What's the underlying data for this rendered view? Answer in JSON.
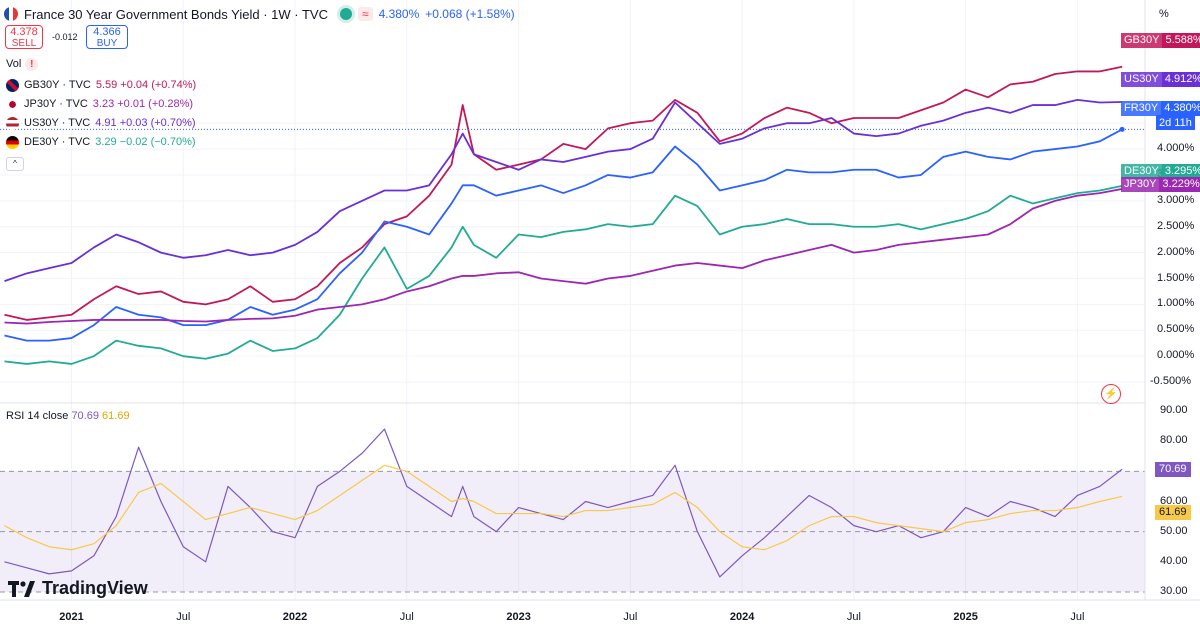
{
  "header": {
    "title": "France 30 Year Government Bonds Yield · 1W · TVC",
    "approx_symbol": "≈",
    "last": "4.380%",
    "change": "+0.068 (+1.58%)",
    "sell_price": "4.378",
    "sell_label": "SELL",
    "spread": "-0.012",
    "buy_price": "4.366",
    "buy_label": "BUY",
    "vol_label": "Vol",
    "vol_warning": "!",
    "collapse": "^"
  },
  "legend": [
    {
      "sym": "GB30Y · TVC",
      "val": "5.59 +0.04 (+0.74%)",
      "color": "#c2185b",
      "flag": "uk-flag-icon"
    },
    {
      "sym": "JP30Y · TVC",
      "val": "3.23 +0.01 (+0.28%)",
      "color": "#9c27b0",
      "flag": "japan-flag-icon"
    },
    {
      "sym": "US30Y · TVC",
      "val": "4.91 +0.03 (+0.70%)",
      "color": "#6b2fd6",
      "flag": "us-flag-icon"
    },
    {
      "sym": "DE30Y · TVC",
      "val": "3.29 −0.02 (−0.70%)",
      "color": "#22ab94",
      "flag": "germany-flag-icon"
    }
  ],
  "price_axis_unit": "%",
  "rsi": {
    "label": "RSI 14 close",
    "value": "70.69",
    "ma_value": "61.69"
  },
  "brand": "TradingView",
  "end_tags": [
    {
      "name": "GB30Y",
      "value": "5.588%",
      "color": "#c2185b"
    },
    {
      "name": "US30Y",
      "value": "4.912%",
      "color": "#6b2fd6"
    },
    {
      "name": "FR30Y",
      "value": "4.380%",
      "extra": "2d 11h",
      "color": "#2962ff"
    },
    {
      "name": "DE30Y",
      "value": "3.295%",
      "color": "#22ab94"
    },
    {
      "name": "JP30Y",
      "value": "3.229%",
      "color": "#9c27b0"
    }
  ],
  "chart_data": [
    {
      "type": "line",
      "title": "France 30 Year Government Bonds Yield · 1W · TVC",
      "y_unit": "%",
      "ylim": [
        -0.75,
        6.3
      ],
      "y_ticks": [
        "4.500%",
        "4.000%",
        "3.500%",
        "3.000%",
        "2.500%",
        "2.000%",
        "1.500%",
        "1.000%",
        "0.500%",
        "0.000%",
        "-0.500%"
      ],
      "y_tick_values": [
        4.5,
        4.0,
        3.5,
        3.0,
        2.5,
        2.0,
        1.5,
        1.0,
        0.5,
        0.0,
        -0.5
      ],
      "x_ticks": [
        "2021",
        "Jul",
        "2022",
        "Jul",
        "2023",
        "Jul",
        "2024",
        "Jul",
        "2025",
        "Jul"
      ],
      "x_tick_values": [
        2021.0,
        2021.5,
        2022.0,
        2022.5,
        2023.0,
        2023.5,
        2024.0,
        2024.5,
        2025.0,
        2025.5
      ],
      "xlim": [
        2020.68,
        2025.78
      ],
      "x": [
        2020.7,
        2020.8,
        2020.9,
        2021.0,
        2021.1,
        2021.2,
        2021.3,
        2021.4,
        2021.5,
        2021.6,
        2021.7,
        2021.8,
        2021.9,
        2022.0,
        2022.1,
        2022.2,
        2022.3,
        2022.4,
        2022.5,
        2022.6,
        2022.7,
        2022.75,
        2022.8,
        2022.9,
        2023.0,
        2023.1,
        2023.2,
        2023.3,
        2023.4,
        2023.5,
        2023.6,
        2023.7,
        2023.8,
        2023.9,
        2024.0,
        2024.1,
        2024.2,
        2024.3,
        2024.4,
        2024.5,
        2024.6,
        2024.7,
        2024.8,
        2024.9,
        2025.0,
        2025.1,
        2025.2,
        2025.3,
        2025.4,
        2025.5,
        2025.6,
        2025.7
      ],
      "series": [
        {
          "name": "GB30Y",
          "color": "#c2185b",
          "values": [
            0.8,
            0.7,
            0.75,
            0.8,
            1.1,
            1.35,
            1.2,
            1.25,
            1.05,
            1.0,
            1.1,
            1.35,
            1.05,
            1.1,
            1.35,
            1.8,
            2.1,
            2.55,
            2.7,
            3.1,
            3.7,
            4.85,
            3.9,
            3.6,
            3.7,
            3.8,
            4.1,
            4.0,
            4.4,
            4.5,
            4.55,
            4.95,
            4.7,
            4.15,
            4.3,
            4.6,
            4.8,
            4.7,
            4.5,
            4.6,
            4.6,
            4.6,
            4.75,
            4.9,
            5.15,
            5.0,
            5.25,
            5.3,
            5.45,
            5.5,
            5.5,
            5.59
          ]
        },
        {
          "name": "US30Y",
          "color": "#6b2fd6",
          "values": [
            1.45,
            1.6,
            1.7,
            1.8,
            2.1,
            2.35,
            2.2,
            2.0,
            1.9,
            1.95,
            2.05,
            1.95,
            2.0,
            2.15,
            2.4,
            2.8,
            3.0,
            3.2,
            3.2,
            3.3,
            3.9,
            4.3,
            3.9,
            3.75,
            3.6,
            3.8,
            3.75,
            3.85,
            3.95,
            4.0,
            4.2,
            4.9,
            4.5,
            4.1,
            4.2,
            4.4,
            4.5,
            4.5,
            4.6,
            4.3,
            4.25,
            4.3,
            4.45,
            4.55,
            4.7,
            4.8,
            4.7,
            4.85,
            4.85,
            4.95,
            4.9,
            4.91
          ]
        },
        {
          "name": "FR30Y",
          "color": "#2962ff",
          "values": [
            0.4,
            0.3,
            0.3,
            0.35,
            0.6,
            0.95,
            0.8,
            0.75,
            0.6,
            0.6,
            0.7,
            0.95,
            0.8,
            0.9,
            1.1,
            1.6,
            2.0,
            2.6,
            2.5,
            2.35,
            2.95,
            3.3,
            3.3,
            3.1,
            3.2,
            3.3,
            3.15,
            3.3,
            3.5,
            3.45,
            3.55,
            4.05,
            3.7,
            3.2,
            3.3,
            3.4,
            3.6,
            3.55,
            3.55,
            3.6,
            3.6,
            3.45,
            3.5,
            3.85,
            3.95,
            3.85,
            3.8,
            3.95,
            4.0,
            4.05,
            4.15,
            4.38
          ]
        },
        {
          "name": "DE30Y",
          "color": "#22ab94",
          "values": [
            -0.1,
            -0.15,
            -0.1,
            -0.15,
            0.0,
            0.3,
            0.2,
            0.15,
            0.0,
            -0.05,
            0.05,
            0.3,
            0.1,
            0.15,
            0.35,
            0.8,
            1.5,
            2.1,
            1.3,
            1.55,
            2.1,
            2.5,
            2.15,
            1.9,
            2.35,
            2.3,
            2.4,
            2.45,
            2.55,
            2.5,
            2.55,
            3.1,
            2.9,
            2.35,
            2.5,
            2.55,
            2.65,
            2.55,
            2.55,
            2.5,
            2.5,
            2.55,
            2.45,
            2.55,
            2.65,
            2.8,
            3.1,
            2.95,
            3.05,
            3.15,
            3.2,
            3.29
          ]
        },
        {
          "name": "JP30Y",
          "color": "#9c27b0",
          "values": [
            0.65,
            0.63,
            0.66,
            0.68,
            0.7,
            0.7,
            0.7,
            0.7,
            0.68,
            0.67,
            0.7,
            0.72,
            0.73,
            0.78,
            0.9,
            0.95,
            1.0,
            1.1,
            1.25,
            1.35,
            1.5,
            1.55,
            1.55,
            1.6,
            1.62,
            1.5,
            1.45,
            1.4,
            1.5,
            1.55,
            1.65,
            1.75,
            1.8,
            1.75,
            1.7,
            1.85,
            1.95,
            2.05,
            2.15,
            2.0,
            2.05,
            2.15,
            2.2,
            2.25,
            2.3,
            2.35,
            2.55,
            2.85,
            3.0,
            3.1,
            3.15,
            3.23
          ]
        }
      ]
    },
    {
      "type": "line",
      "title": "RSI 14 close",
      "ylim": [
        28,
        92
      ],
      "y_ticks": [
        "90.00",
        "80.00",
        "70.00",
        "60.00",
        "50.00",
        "40.00",
        "30.00"
      ],
      "y_tick_values": [
        90,
        80,
        70,
        60,
        50,
        40,
        30
      ],
      "band": [
        30,
        70
      ],
      "x": [
        2020.7,
        2020.8,
        2020.9,
        2021.0,
        2021.1,
        2021.2,
        2021.3,
        2021.4,
        2021.5,
        2021.6,
        2021.7,
        2021.8,
        2021.9,
        2022.0,
        2022.1,
        2022.2,
        2022.3,
        2022.4,
        2022.5,
        2022.6,
        2022.7,
        2022.75,
        2022.8,
        2022.9,
        2023.0,
        2023.1,
        2023.2,
        2023.3,
        2023.4,
        2023.5,
        2023.6,
        2023.7,
        2023.8,
        2023.9,
        2024.0,
        2024.1,
        2024.2,
        2024.3,
        2024.4,
        2024.5,
        2024.6,
        2024.7,
        2024.8,
        2024.9,
        2025.0,
        2025.1,
        2025.2,
        2025.3,
        2025.4,
        2025.5,
        2025.6,
        2025.7
      ],
      "series": [
        {
          "name": "RSI",
          "color": "#7e57c2",
          "values": [
            40,
            38,
            36,
            37,
            42,
            55,
            78,
            60,
            45,
            40,
            65,
            58,
            50,
            48,
            65,
            70,
            76,
            84,
            65,
            60,
            55,
            65,
            55,
            50,
            58,
            56,
            54,
            60,
            58,
            60,
            62,
            72,
            50,
            35,
            42,
            48,
            55,
            62,
            58,
            52,
            50,
            52,
            48,
            50,
            58,
            55,
            60,
            58,
            55,
            62,
            65,
            70.69
          ]
        },
        {
          "name": "RSI-based MA",
          "color": "#f7c948",
          "values": [
            52,
            48,
            45,
            44,
            46,
            52,
            63,
            66,
            60,
            54,
            56,
            58,
            56,
            54,
            57,
            62,
            67,
            72,
            70,
            65,
            60,
            61,
            60,
            56,
            56,
            56,
            55,
            57,
            57,
            58,
            59,
            63,
            58,
            50,
            45,
            44,
            47,
            52,
            55,
            55,
            53,
            52,
            51,
            50,
            53,
            54,
            56,
            57,
            57,
            58,
            60,
            61.69
          ]
        }
      ]
    }
  ]
}
